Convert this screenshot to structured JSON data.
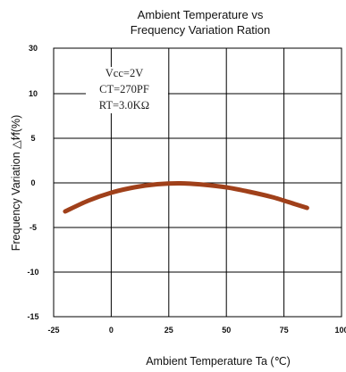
{
  "chart_data": {
    "type": "line",
    "title_lines": [
      "Ambient Temperature vs",
      "Frequency Variation Ration"
    ],
    "xlabel": "Ambient Temperature Ta (℃)",
    "ylabel": "Frequency Variation △f∕f(%)",
    "xlim": [
      -25,
      100
    ],
    "ylim": [
      -15,
      30
    ],
    "x_ticks": [
      "-25",
      "0",
      "25",
      "50",
      "75",
      "100"
    ],
    "x_tick_values": [
      -25,
      0,
      25,
      50,
      75,
      100
    ],
    "y_ticks": [
      "30",
      "10",
      "5",
      "0",
      "-5",
      "-10",
      "-15"
    ],
    "y_tick_values": [
      30,
      10,
      5,
      0,
      -5,
      -10,
      -15
    ],
    "grid": true,
    "annotations": [
      "Vcc=2V",
      "CT=270PF",
      "RT=3.0KΩ"
    ],
    "series": [
      {
        "color": "#a0401a",
        "x": [
          -20,
          -10,
          0,
          10,
          20,
          30,
          40,
          50,
          60,
          70,
          80,
          85
        ],
        "y": [
          -3.2,
          -2.0,
          -1.1,
          -0.5,
          -0.15,
          -0.05,
          -0.2,
          -0.5,
          -1.0,
          -1.6,
          -2.4,
          -2.8
        ]
      }
    ]
  }
}
